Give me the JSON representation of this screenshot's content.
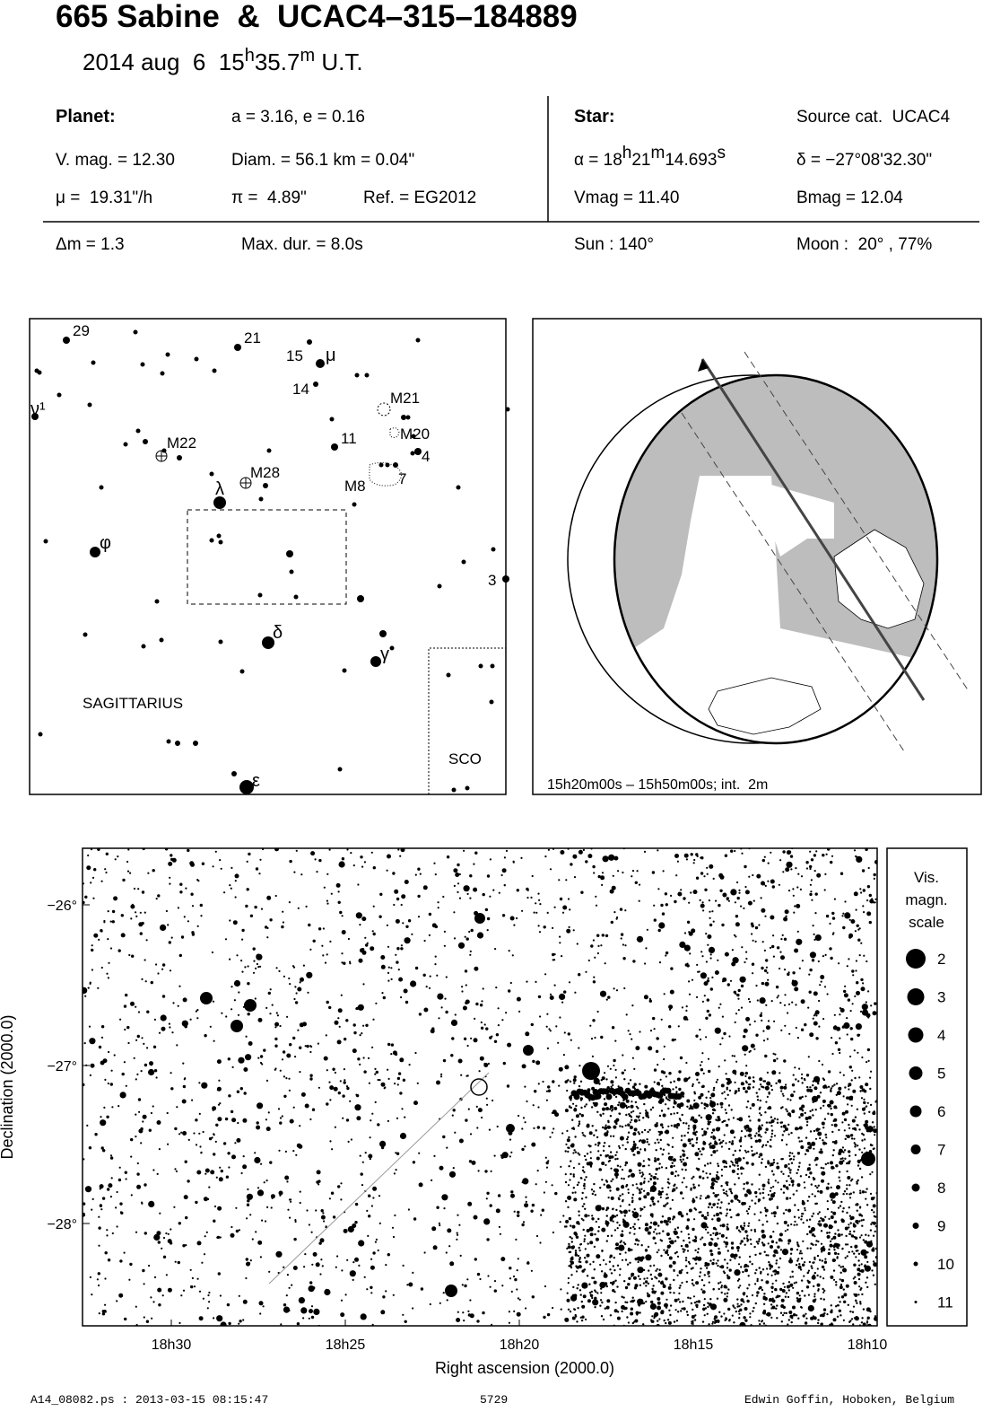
{
  "header": {
    "title": "665 Sabine  &  UCAC4–315–184889",
    "date": {
      "day": "2014 aug  6  15",
      "h": "h",
      "minutes": "35.7",
      "m": "m",
      "ut": " U.T."
    }
  },
  "planet": {
    "label": "Planet:",
    "orbit": "a = 3.16, e = 0.16",
    "vmag": "V. mag. = 12.30",
    "diam": "Diam. = 56.1 km = 0.04\"",
    "motion": "μ =  19.31\"/h",
    "parallax": "π =  4.89\"",
    "ref": "Ref. = EG2012"
  },
  "star": {
    "label": "Star:",
    "source": "Source cat.  UCAC4",
    "alpha": {
      "prefix": "α = 18",
      "h": "h",
      "min": "21",
      "m": "m",
      "sec": "14.693",
      "s": "s"
    },
    "delta": "δ = −27°08'32.30\"",
    "vmag": "Vmag = 11.40",
    "bmag": "Bmag = 12.04"
  },
  "summary": {
    "dmag": "Δm = 1.3",
    "max_dur": "Max. dur. = 8.0s",
    "sun": "Sun : 140°",
    "moon": "Moon :  20° , 77%"
  },
  "finder": {
    "labels": [
      "29",
      "21",
      "15",
      "μ",
      "14",
      "ν¹",
      "M21",
      "M20",
      "11",
      "4",
      "M22",
      "M28",
      "7",
      "M8",
      "λ",
      "φ",
      "3",
      "δ",
      "γ",
      "SAGITTARIUS",
      "SCO",
      "ε"
    ]
  },
  "globe": {
    "caption": "15h20m00s – 15h50m00s; int.  2m"
  },
  "detail": {
    "x_label": "Right ascension (2000.0)",
    "y_label": "Declination (2000.0)",
    "x_ticks": [
      "18h30",
      "18h25",
      "18h20",
      "18h15",
      "18h10"
    ],
    "y_ticks": [
      "−26°",
      "−27°",
      "−28°"
    ],
    "legend": {
      "title": [
        "Vis.",
        "magn.",
        "scale"
      ],
      "magnitudes": [
        "2",
        "3",
        "4",
        "5",
        "6",
        "7",
        "8",
        "9",
        "10",
        "11"
      ]
    }
  },
  "footer": {
    "file": "A14_08082.ps : 2013-03-15 08:15:47",
    "number": "5729",
    "author": "Edwin Goffin, Hoboken, Belgium"
  }
}
